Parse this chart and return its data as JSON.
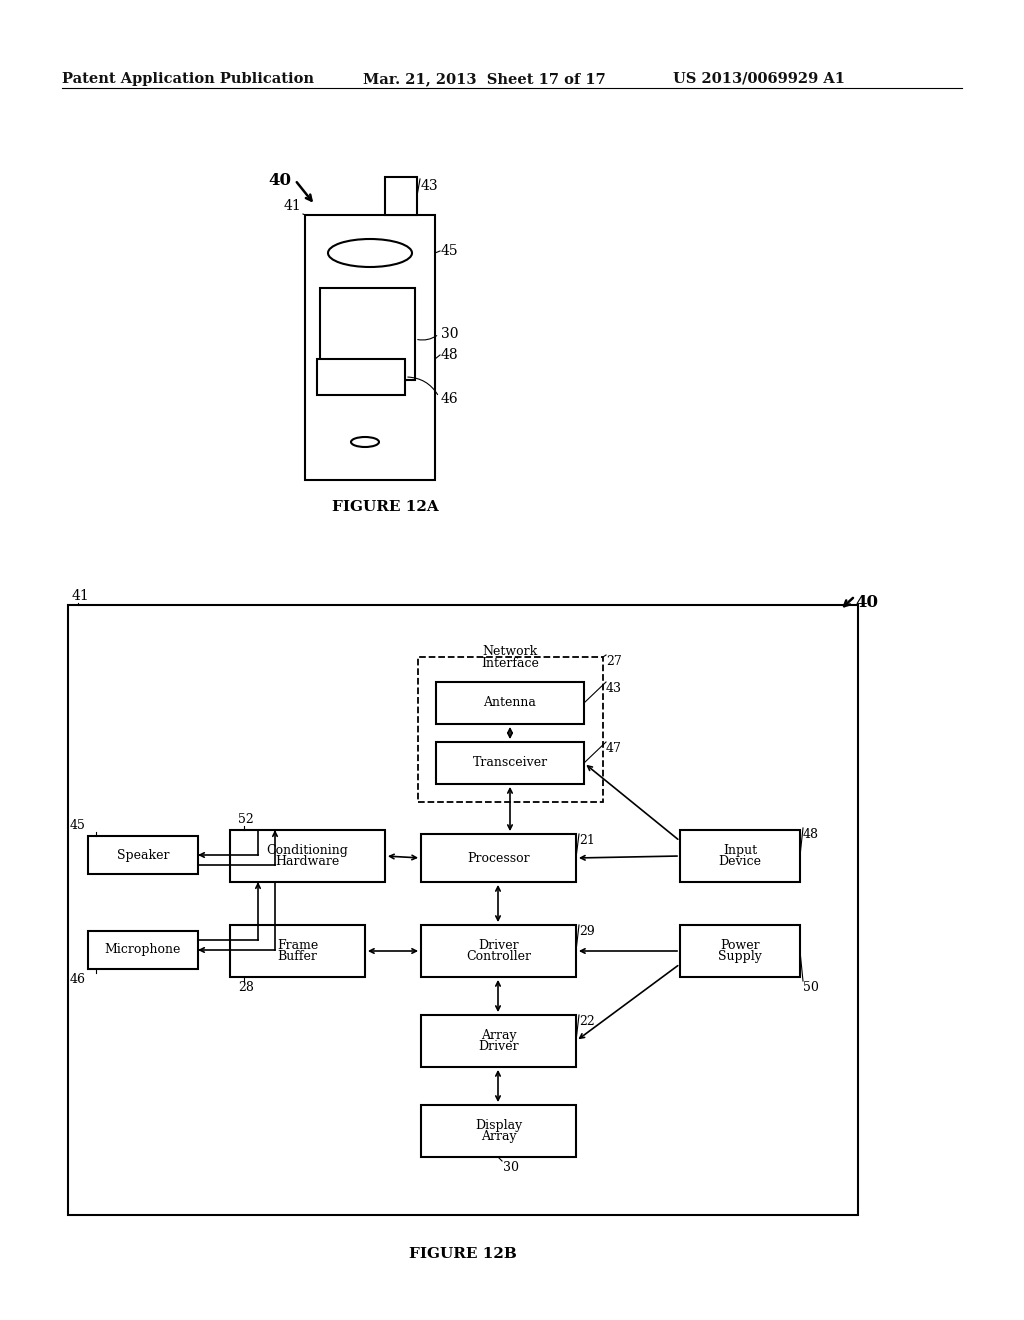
{
  "bg_color": "#ffffff",
  "header_left": "Patent Application Publication",
  "header_mid": "Mar. 21, 2013  Sheet 17 of 17",
  "header_right": "US 2013/0069929 A1",
  "fig12a_label": "FIGURE 12A",
  "fig12b_label": "FIGURE 12B",
  "lw": 1.5,
  "alw": 1.2
}
